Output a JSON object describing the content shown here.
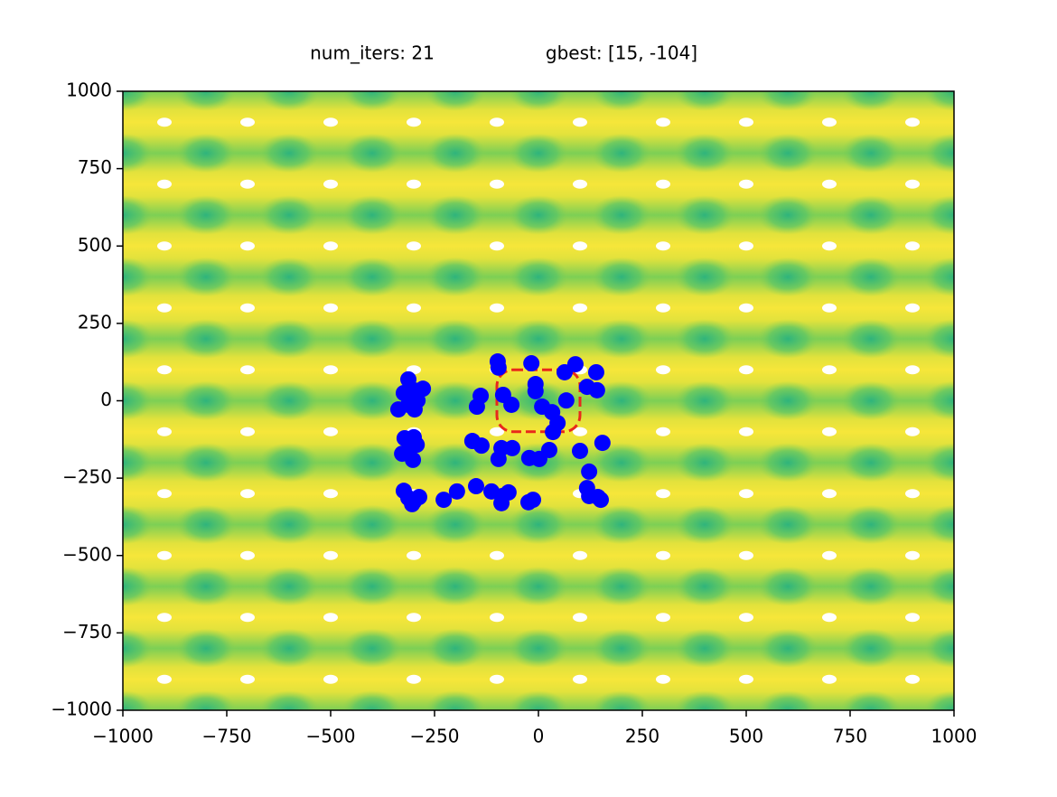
{
  "chart_data": {
    "type": "scatter",
    "title": "num_iters: 21",
    "subtitle": "gbest: [15, -104]",
    "x": [
      -313,
      -324,
      -300,
      -278,
      -313,
      -337,
      -298,
      -291,
      -322,
      -300,
      -293,
      -313,
      -328,
      -302,
      -324,
      -313,
      -300,
      -287,
      -304,
      -228,
      -196,
      -150,
      -113,
      -87,
      -72,
      -89,
      -24,
      -13,
      -159,
      -137,
      -96,
      -89,
      -63,
      -98,
      -96,
      -85,
      -65,
      -148,
      -139,
      -17,
      -7,
      -7,
      9,
      33,
      35,
      63,
      67,
      89,
      46,
      -22,
      2,
      26,
      100,
      139,
      117,
      141,
      122,
      117,
      122,
      143,
      150,
      154
    ],
    "values": [
      69,
      25,
      34,
      39,
      -13,
      -28,
      -28,
      1,
      -121,
      -118,
      -142,
      -165,
      -171,
      -191,
      -291,
      -314,
      -326,
      -311,
      -334,
      -320,
      -293,
      -276,
      -293,
      -308,
      -296,
      -331,
      -328,
      -320,
      -130,
      -145,
      -188,
      -153,
      -153,
      127,
      107,
      19,
      -13,
      -19,
      16,
      121,
      54,
      31,
      -19,
      -37,
      -101,
      92,
      1,
      118,
      -72,
      -185,
      -188,
      -159,
      -162,
      92,
      45,
      34,
      -229,
      -282,
      -308,
      -311,
      -320,
      -136
    ],
    "color": "#0000ff",
    "highlight_box": {
      "xlim": [
        -100,
        100
      ],
      "ylim": [
        -100,
        100
      ],
      "color": "#e8291b"
    },
    "xlim": [
      -1000,
      1000
    ],
    "ylim": [
      -1000,
      1000
    ],
    "xticks": [
      {
        "value": -1000,
        "label": "−1000"
      },
      {
        "value": -750,
        "label": "−750"
      },
      {
        "value": -500,
        "label": "−500"
      },
      {
        "value": -250,
        "label": "−250"
      },
      0,
      250,
      500,
      750,
      1000
    ],
    "yticks": [
      {
        "value": -1000,
        "label": "−1000"
      },
      {
        "value": -750,
        "label": "−750"
      },
      {
        "value": -500,
        "label": "−500"
      },
      {
        "value": -250,
        "label": "−250"
      },
      0,
      250,
      500,
      750,
      1000
    ]
  }
}
